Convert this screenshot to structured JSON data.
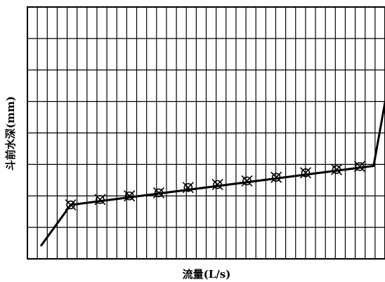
{
  "chart_data": {
    "type": "line",
    "title": "",
    "xlabel": "流量(L/s)",
    "ylabel": "斗前水深(mm)",
    "xlim": [
      0,
      11
    ],
    "ylim": [
      0,
      8.4
    ],
    "grid": true,
    "x_grid_count": 36,
    "y_grid_count": 8,
    "series": [
      {
        "curve": [
          {
            "x": 0.45,
            "y": 0.45
          },
          {
            "x": 1.4,
            "y": 1.8
          },
          {
            "x": 11.2,
            "y": 3.1
          },
          {
            "x": 11.6,
            "y": 5.4
          },
          {
            "x": 12.2,
            "y": 7.2
          }
        ],
        "points": [
          {
            "x": 1.4,
            "y": 1.8
          },
          {
            "x": 2.35,
            "y": 1.98
          },
          {
            "x": 3.3,
            "y": 2.1
          },
          {
            "x": 4.25,
            "y": 2.2
          },
          {
            "x": 5.2,
            "y": 2.38
          },
          {
            "x": 6.15,
            "y": 2.48
          },
          {
            "x": 7.1,
            "y": 2.6
          },
          {
            "x": 8.05,
            "y": 2.72
          },
          {
            "x": 9.0,
            "y": 2.87
          },
          {
            "x": 10.0,
            "y": 2.98
          },
          {
            "x": 10.75,
            "y": 3.08
          }
        ]
      }
    ]
  }
}
